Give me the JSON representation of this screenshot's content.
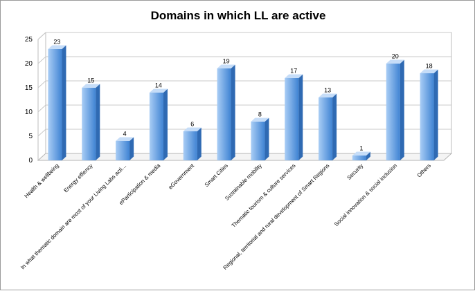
{
  "chart_data": {
    "type": "bar",
    "title": "Domains in which LL are active",
    "categories": [
      "Health & wellbeing",
      "Energy effiency",
      "In what thematic domain are most of your Living Labs acti…",
      "eParticipation & media",
      "eGovernment",
      "Smart Cities",
      "Sustainable mobility",
      "Thematic tourism & culture services",
      "Regional, territorial and rural development of Smart Regions",
      "Security",
      "Social innovation & social inclusion",
      "Others"
    ],
    "values": [
      23,
      15,
      4,
      14,
      6,
      19,
      8,
      17,
      13,
      1,
      20,
      18
    ],
    "data_labels": [
      "23",
      "15",
      "4",
      "14",
      "6",
      "19",
      "8",
      "17",
      "13",
      "1",
      "20",
      "18"
    ],
    "yticks": [
      "0",
      "5",
      "10",
      "15",
      "20",
      "25"
    ],
    "ylim": [
      0,
      25
    ],
    "grid": true,
    "legend": "none",
    "bar_colors": {
      "front_light": "#a9cdf5",
      "front_dark": "#3f83d3",
      "side": "#2f6ab3",
      "top": "#c6ddf8"
    }
  }
}
